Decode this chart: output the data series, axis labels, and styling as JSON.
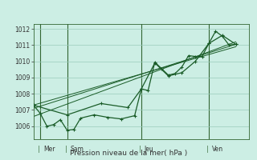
{
  "title": "Pression niveau de la mer( hPa )",
  "bg_color": "#cceee4",
  "plot_bg_color": "#cceee4",
  "grid_color": "#99ccbb",
  "line_color": "#1a5c28",
  "vline_color": "#336633",
  "label_color": "#333333",
  "ylim": [
    1005.2,
    1012.3
  ],
  "yticks": [
    1006,
    1007,
    1008,
    1009,
    1010,
    1011,
    1012
  ],
  "xlim": [
    0,
    16.0
  ],
  "day_labels": [
    "Mer",
    "Sam",
    "Jeu",
    "Ven"
  ],
  "day_positions": [
    0.5,
    2.5,
    8.0,
    13.0
  ],
  "vline_positions": [
    0.5,
    2.5,
    8.0,
    13.0
  ],
  "line1_x": [
    0.0,
    0.5,
    1.0,
    1.5,
    2.0,
    2.5,
    3.0,
    3.5,
    4.5,
    5.5,
    6.5,
    7.5,
    8.0,
    8.5,
    9.0,
    9.5,
    10.0,
    10.5,
    11.0,
    11.5,
    12.0,
    12.5,
    13.0,
    13.5,
    14.0,
    14.5,
    15.0
  ],
  "line1_y": [
    1007.3,
    1006.8,
    1006.0,
    1006.1,
    1006.4,
    1005.75,
    1005.8,
    1006.5,
    1006.7,
    1006.55,
    1006.45,
    1006.65,
    1008.3,
    1008.2,
    1009.95,
    1009.55,
    1009.15,
    1009.25,
    1009.65,
    1010.35,
    1010.3,
    1010.3,
    1011.1,
    1011.85,
    1011.55,
    1011.0,
    1011.05
  ],
  "line2_x": [
    0.0,
    2.5,
    5.0,
    7.0,
    8.0,
    9.0,
    10.0,
    11.0,
    12.0,
    13.0,
    14.0,
    15.0
  ],
  "line2_y": [
    1007.3,
    1006.7,
    1007.4,
    1007.15,
    1008.3,
    1009.9,
    1009.1,
    1009.3,
    1010.0,
    1011.1,
    1011.6,
    1011.05
  ],
  "trend1_x": [
    0.0,
    15.0
  ],
  "trend1_y": [
    1007.1,
    1011.05
  ],
  "trend2_x": [
    0.0,
    15.0
  ],
  "trend2_y": [
    1007.3,
    1010.9
  ],
  "trend3_x": [
    0.0,
    15.0
  ],
  "trend3_y": [
    1006.6,
    1011.2
  ]
}
